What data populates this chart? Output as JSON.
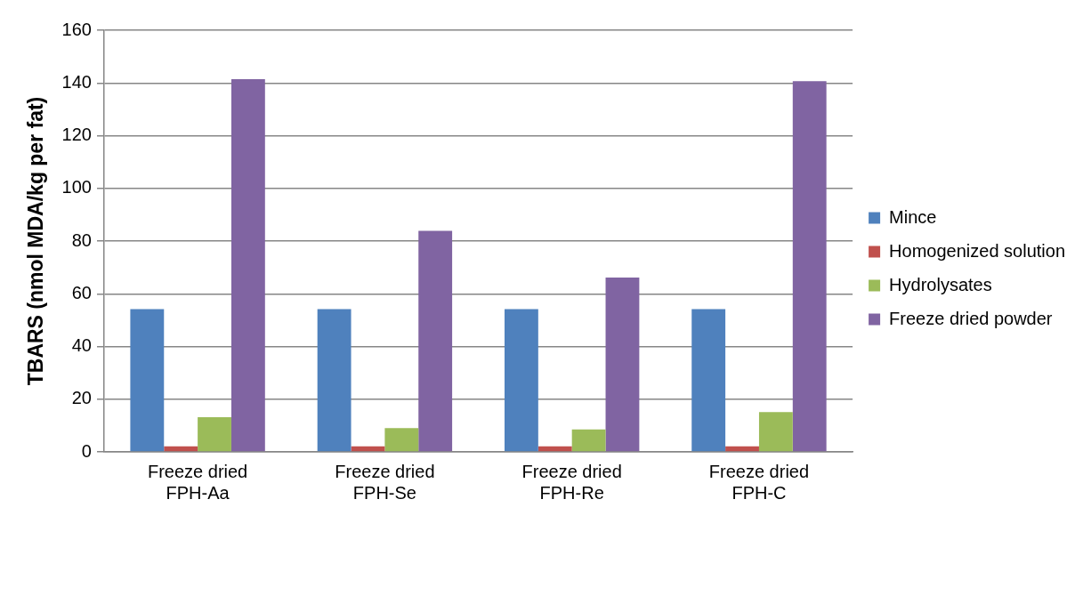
{
  "chart_data": {
    "type": "bar",
    "ylabel": "TBARS (nmol MDA/kg per fat)",
    "categories": [
      "Freeze dried FPH-Aa",
      "Freeze dried FPH-Se",
      "Freeze dried FPH-Re",
      "Freeze dried FPH-C"
    ],
    "series": [
      {
        "name": "Mince",
        "color": "#4f81bd",
        "values": [
          54.2,
          54.2,
          54.2,
          54.2
        ]
      },
      {
        "name": "Homogenized solution",
        "color": "#c0504d",
        "values": [
          2.1,
          2.1,
          2.1,
          2.1
        ]
      },
      {
        "name": "Hydrolysates",
        "color": "#9bbb59",
        "values": [
          13.2,
          9.0,
          8.5,
          15.1
        ]
      },
      {
        "name": "Freeze dried powder",
        "color": "#8064a2",
        "values": [
          141.4,
          83.9,
          66.2,
          140.7
        ]
      }
    ],
    "ylim": [
      0,
      160
    ],
    "yticks": [
      0,
      20,
      40,
      60,
      80,
      100,
      120,
      140,
      160
    ],
    "grid": "y",
    "legend": "right"
  }
}
